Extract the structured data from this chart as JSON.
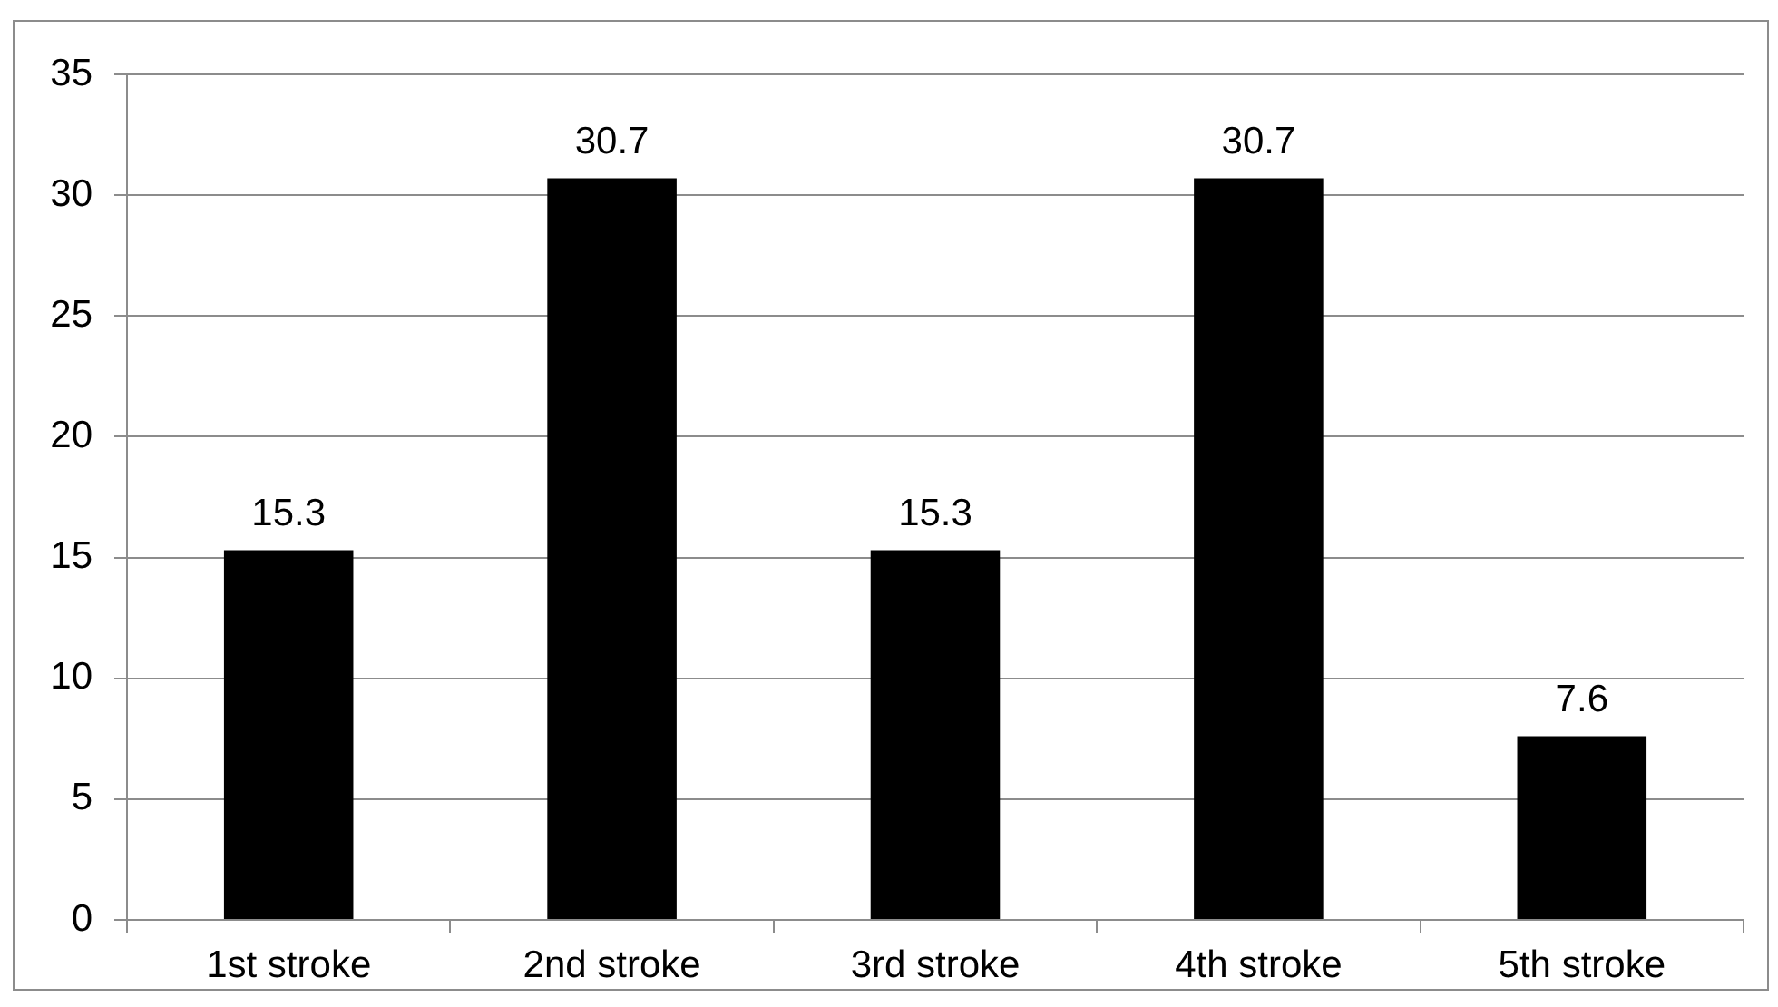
{
  "chart_data": {
    "type": "bar",
    "categories": [
      "1st stroke",
      "2nd stroke",
      "3rd stroke",
      "4th stroke",
      "5th stroke"
    ],
    "values": [
      15.3,
      30.7,
      15.3,
      30.7,
      7.6
    ],
    "color": "#000000",
    "ylim": [
      0,
      35
    ],
    "yticks": [
      0,
      5,
      10,
      15,
      20,
      25,
      30,
      35
    ],
    "grid": "y",
    "data_labels": true
  }
}
